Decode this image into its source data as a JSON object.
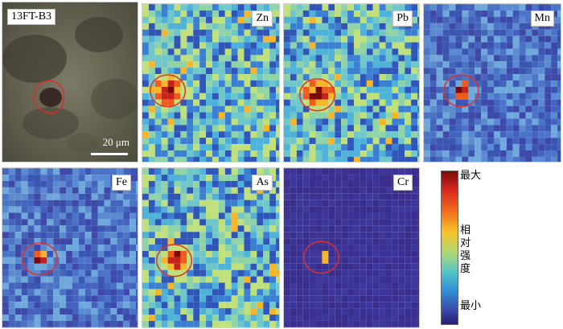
{
  "sample_label": "13FT-B3",
  "scale_label": "20 μm",
  "elements": [
    "Zn",
    "Pb",
    "Mn",
    "Fe",
    "As",
    "Cr"
  ],
  "colorbar": {
    "max_label": "最大",
    "mid_label_chars": [
      "相",
      "对",
      "强",
      "度"
    ],
    "min_label": "最小",
    "colors": [
      "#7a0a0a",
      "#d7261f",
      "#f26b1d",
      "#f7c42a",
      "#a9d77a",
      "#56c4c8",
      "#2f8fd8",
      "#3b4fb0",
      "#2c1b70"
    ]
  }
}
